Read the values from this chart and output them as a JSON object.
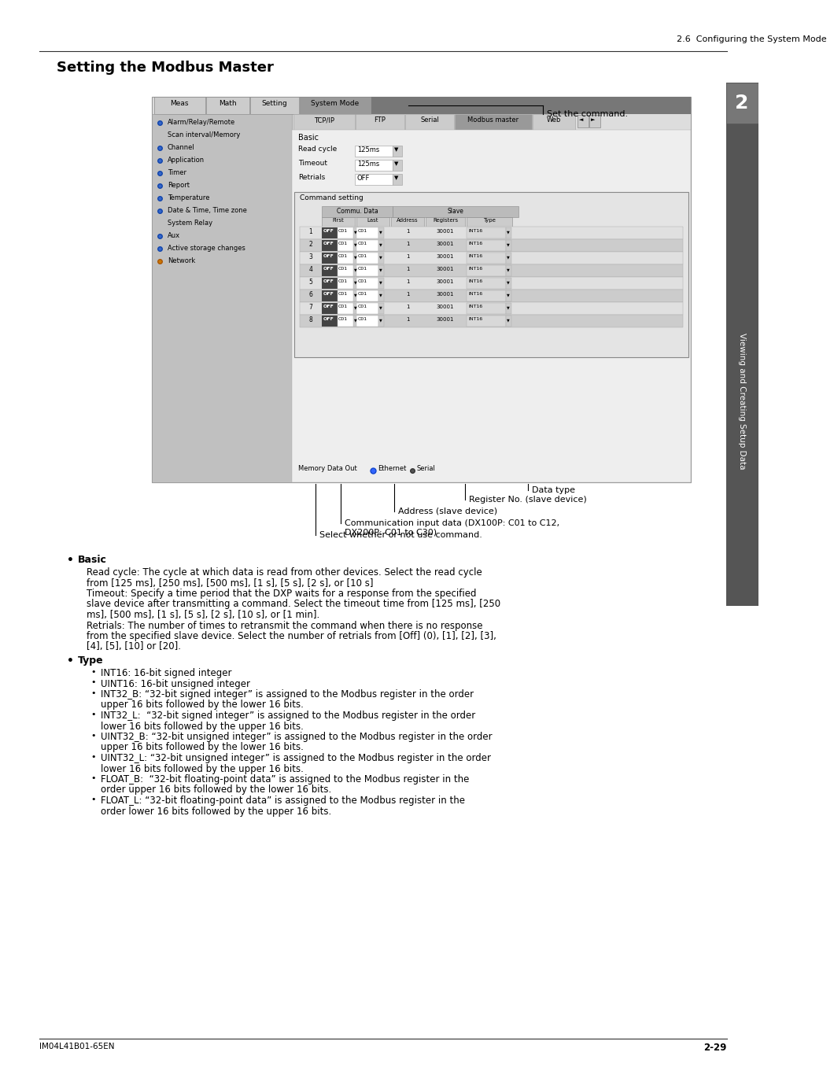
{
  "page_header_right": "2.6  Configuring the System Mode",
  "section_title": "Setting the Modbus Master",
  "footer_left": "IM04L41B01-65EN",
  "footer_right": "2-29",
  "chapter_number": "2",
  "chapter_label": "Viewing and Creating Setup Data",
  "annotation_set_command": "Set the command.",
  "annotation_data_type": "Data type",
  "annotation_register_no": "Register No. (slave device)",
  "annotation_address": "Address (slave device)",
  "annotation_commu_data": "Communication input data (DX100P: C01 to C12,\nDX200P: C01 to C30)",
  "annotation_select": "Select whether or not use command.",
  "bullet_basic_title": "Basic",
  "bullet_basic_lines": [
    "Read cycle: The cycle at which data is read from other devices. Select the read cycle",
    "from [125 ms], [250 ms], [500 ms], [1 s], [5 s], [2 s], or [10 s]",
    "Timeout: Specify a time period that the DXP waits for a response from the specified",
    "slave device after transmitting a command. Select the timeout time from [125 ms], [250",
    "ms], [500 ms], [1 s], [5 s], [2 s], [10 s], or [1 min].",
    "Retrials: The number of times to retransmit the command when there is no response",
    "from the specified slave device. Select the number of retrials from [Off] (0), [1], [2], [3],",
    "[4], [5], [10] or [20]."
  ],
  "bullet_type_title": "Type",
  "bullet_type_items": [
    [
      "INT16: 16-bit signed integer"
    ],
    [
      "UINT16: 16-bit unsigned integer"
    ],
    [
      "INT32_B: “32-bit signed integer” is assigned to the Modbus register in the order",
      "upper 16 bits followed by the lower 16 bits."
    ],
    [
      "INT32_L:  “32-bit signed integer” is assigned to the Modbus register in the order",
      "lower 16 bits followed by the upper 16 bits."
    ],
    [
      "UINT32_B: “32-bit unsigned integer” is assigned to the Modbus register in the order",
      "upper 16 bits followed by the lower 16 bits."
    ],
    [
      "UINT32_L: “32-bit unsigned integer” is assigned to the Modbus register in the order",
      "lower 16 bits followed by the upper 16 bits."
    ],
    [
      "FLOAT_B:  “32-bit floating-point data” is assigned to the Modbus register in the",
      "order upper 16 bits followed by the lower 16 bits."
    ],
    [
      "FLOAT_L: “32-bit floating-point data” is assigned to the Modbus register in the",
      "order lower 16 bits followed by the upper 16 bits."
    ]
  ]
}
